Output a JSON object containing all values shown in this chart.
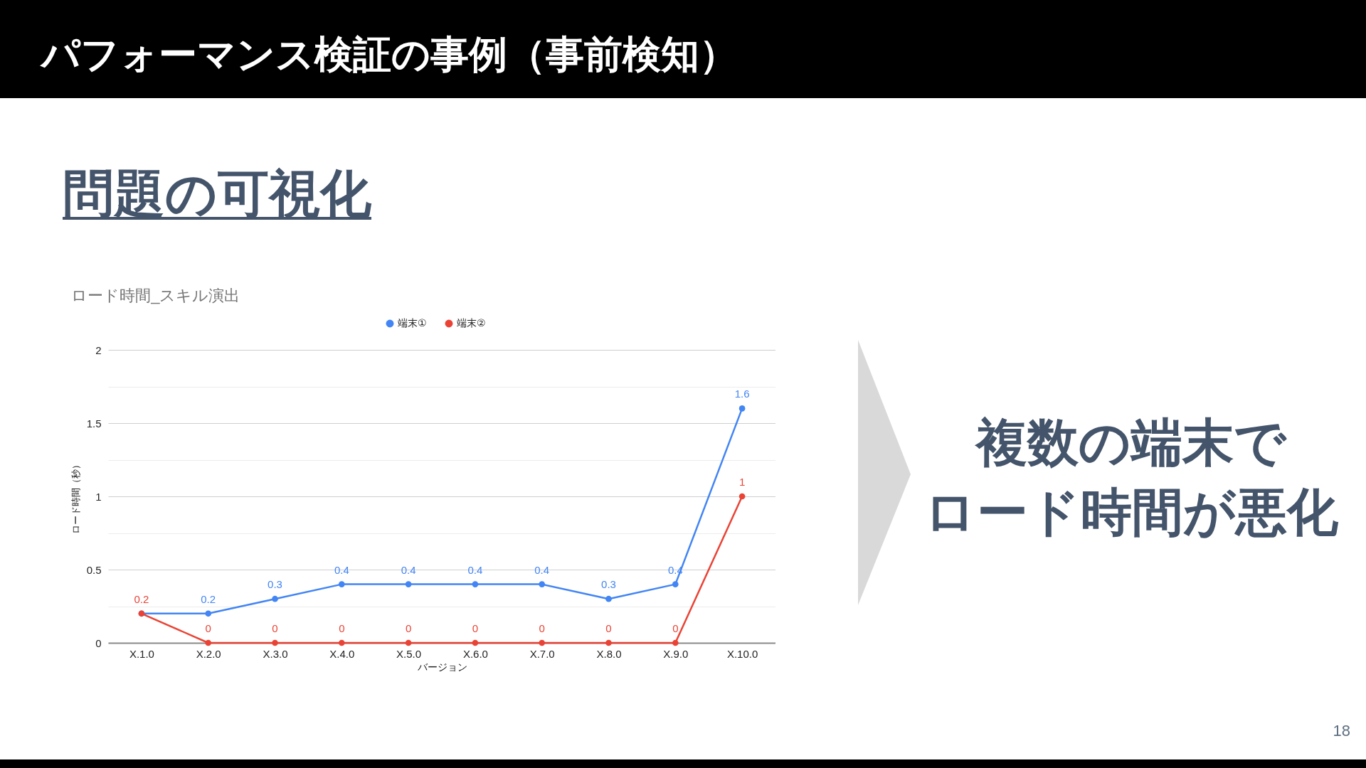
{
  "chart_data": {
    "type": "line",
    "title": "ロード時間_スキル演出",
    "xlabel": "バージョン",
    "ylabel": "ロード時間（秒）",
    "categories": [
      "X.1.0",
      "X.2.0",
      "X.3.0",
      "X.4.0",
      "X.5.0",
      "X.6.0",
      "X.7.0",
      "X.8.0",
      "X.9.0",
      "X.10.0"
    ],
    "series": [
      {
        "name": "端末①",
        "color": "#4285f4",
        "values": [
          0.2,
          0.2,
          0.3,
          0.4,
          0.4,
          0.4,
          0.4,
          0.3,
          0.4,
          1.6
        ],
        "value_labels": [
          null,
          "0.2",
          "0.3",
          "0.4",
          "0.4",
          "0.4",
          "0.4",
          "0.3",
          "0.4",
          "1.6"
        ]
      },
      {
        "name": "端末②",
        "color": "#ea4335",
        "values": [
          0.2,
          0,
          0,
          0,
          0,
          0,
          0,
          0,
          0,
          1
        ],
        "value_labels": [
          "0.2",
          "0",
          "0",
          "0",
          "0",
          "0",
          "0",
          "0",
          "0",
          "1"
        ]
      }
    ],
    "ylim": [
      0,
      2
    ],
    "yticks": [
      0,
      {
        "value": 0.25,
        "label": null
      },
      0.5,
      {
        "value": 0.75,
        "label": null
      },
      1,
      {
        "value": 1.25,
        "label": null
      },
      1.5,
      {
        "value": 1.75,
        "label": null
      },
      2
    ],
    "grid": "y",
    "legend": "top",
    "marker": "circle",
    "line_style": "solid",
    "annotations": [
      "パフォーマンス検証の事例（事前検知）",
      "問題の可視化",
      "複数の端末で",
      "ロード時間が悪化",
      "18"
    ]
  }
}
